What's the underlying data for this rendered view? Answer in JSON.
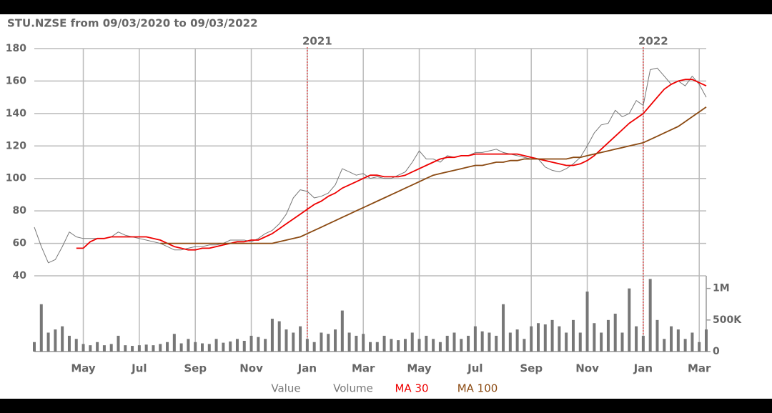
{
  "chart_data": {
    "type": "line",
    "title": "STU.NZSE from 09/03/2020 to 09/03/2022",
    "categories": [
      null,
      null,
      null,
      null,
      null,
      null,
      null,
      "May",
      null,
      null,
      null,
      null,
      null,
      null,
      null,
      "Jul",
      null,
      null,
      null,
      null,
      null,
      null,
      null,
      "Sep",
      null,
      null,
      null,
      null,
      null,
      null,
      null,
      "Nov",
      null,
      null,
      null,
      null,
      null,
      null,
      null,
      "Jan",
      null,
      null,
      null,
      null,
      null,
      null,
      null,
      "Mar",
      null,
      null,
      null,
      null,
      null,
      null,
      null,
      "May",
      null,
      null,
      null,
      null,
      null,
      null,
      null,
      "Jul",
      null,
      null,
      null,
      null,
      null,
      null,
      null,
      "Sep",
      null,
      null,
      null,
      null,
      null,
      null,
      null,
      "Nov",
      null,
      null,
      null,
      null,
      null,
      null,
      null,
      "Jan",
      null,
      null,
      null,
      null,
      null,
      null,
      null,
      "Mar",
      null
    ],
    "year_categories": [
      null,
      null,
      null,
      null,
      null,
      null,
      null,
      null,
      null,
      null,
      null,
      null,
      null,
      null,
      null,
      null,
      null,
      null,
      null,
      null,
      null,
      null,
      null,
      null,
      null,
      null,
      null,
      null,
      null,
      null,
      null,
      null,
      null,
      null,
      null,
      null,
      null,
      null,
      null,
      "2021",
      null,
      null,
      null,
      null,
      null,
      null,
      null,
      null,
      null,
      null,
      null,
      null,
      null,
      null,
      null,
      null,
      null,
      null,
      null,
      null,
      null,
      null,
      null,
      null,
      null,
      null,
      null,
      null,
      null,
      null,
      null,
      null,
      null,
      null,
      null,
      null,
      null,
      null,
      null,
      null,
      null,
      null,
      null,
      null,
      null,
      null,
      null,
      "2022",
      null,
      null,
      null,
      null,
      null,
      null,
      null,
      null,
      null
    ],
    "series": [
      {
        "name": "Value",
        "color": "#777777",
        "values": [
          70,
          58,
          48,
          50,
          58,
          67,
          64,
          63,
          63,
          63,
          63,
          64,
          67,
          65,
          64,
          63,
          62,
          61,
          60,
          58,
          56,
          56,
          57,
          58,
          58,
          59,
          59,
          60,
          62,
          62,
          62,
          61,
          63,
          66,
          68,
          72,
          78,
          88,
          93,
          92,
          88,
          89,
          91,
          96,
          106,
          104,
          102,
          103,
          100,
          101,
          100,
          100,
          102,
          104,
          110,
          117,
          112,
          112,
          110,
          114,
          113,
          114,
          114,
          116,
          116,
          117,
          118,
          116,
          115,
          114,
          113,
          112,
          112,
          107,
          105,
          104,
          106,
          109,
          113,
          120,
          128,
          133,
          134,
          142,
          138,
          140,
          148,
          145,
          167,
          168,
          163,
          158,
          160,
          157,
          163,
          158,
          150
        ]
      },
      {
        "name": "Volume",
        "color": "#777777",
        "type": "bar",
        "axis": "y2",
        "values": [
          150000,
          750000,
          300000,
          350000,
          400000,
          250000,
          200000,
          120000,
          100000,
          150000,
          100000,
          120000,
          250000,
          100000,
          90000,
          100000,
          110000,
          100000,
          120000,
          150000,
          280000,
          130000,
          200000,
          150000,
          130000,
          120000,
          200000,
          140000,
          160000,
          200000,
          170000,
          250000,
          230000,
          200000,
          520000,
          480000,
          350000,
          300000,
          400000,
          200000,
          150000,
          300000,
          280000,
          350000,
          650000,
          300000,
          250000,
          280000,
          150000,
          150000,
          250000,
          200000,
          180000,
          200000,
          300000,
          200000,
          250000,
          200000,
          150000,
          250000,
          300000,
          200000,
          250000,
          400000,
          320000,
          300000,
          250000,
          750000,
          300000,
          350000,
          200000,
          400000,
          450000,
          430000,
          500000,
          400000,
          300000,
          500000,
          300000,
          950000,
          450000,
          300000,
          500000,
          600000,
          300000,
          1000000,
          400000,
          250000,
          1150000,
          500000,
          200000,
          400000,
          350000,
          200000,
          300000,
          150000,
          350000
        ]
      },
      {
        "name": "MA 30",
        "color": "#ee0000",
        "values": [
          null,
          null,
          null,
          null,
          null,
          null,
          57,
          57,
          61,
          63,
          63,
          64,
          64,
          64,
          64,
          64,
          64,
          63,
          62,
          60,
          58,
          57,
          56,
          56,
          57,
          57,
          58,
          59,
          60,
          61,
          61,
          62,
          62,
          64,
          66,
          69,
          72,
          75,
          78,
          81,
          84,
          86,
          89,
          91,
          94,
          96,
          98,
          100,
          102,
          102,
          101,
          101,
          101,
          102,
          104,
          106,
          108,
          110,
          112,
          113,
          113,
          114,
          114,
          115,
          115,
          115,
          115,
          115,
          115,
          115,
          114,
          113,
          112,
          111,
          110,
          109,
          108,
          108,
          109,
          111,
          114,
          118,
          122,
          126,
          130,
          134,
          137,
          140,
          145,
          150,
          155,
          158,
          160,
          161,
          161,
          159,
          157
        ]
      },
      {
        "name": "MA 100",
        "color": "#8b4a12",
        "values": [
          null,
          null,
          null,
          null,
          null,
          null,
          null,
          null,
          null,
          null,
          null,
          null,
          null,
          null,
          null,
          null,
          null,
          null,
          60,
          60,
          60,
          60,
          60,
          60,
          60,
          60,
          60,
          60,
          60,
          60,
          60,
          60,
          60,
          60,
          60,
          61,
          62,
          63,
          64,
          66,
          68,
          70,
          72,
          74,
          76,
          78,
          80,
          82,
          84,
          86,
          88,
          90,
          92,
          94,
          96,
          98,
          100,
          102,
          103,
          104,
          105,
          106,
          107,
          108,
          108,
          109,
          110,
          110,
          111,
          111,
          112,
          112,
          112,
          112,
          112,
          112,
          112,
          113,
          113,
          114,
          115,
          116,
          117,
          118,
          119,
          120,
          121,
          122,
          124,
          126,
          128,
          130,
          132,
          135,
          138,
          141,
          144
        ]
      }
    ],
    "ylim": [
      40,
      180
    ],
    "yticks": [
      40,
      60,
      80,
      100,
      120,
      140,
      160,
      180
    ],
    "y2lim": [
      0,
      1200000
    ],
    "y2ticks": [
      0,
      {
        "value": 500000,
        "label": "500K"
      },
      {
        "value": 1000000,
        "label": "1M"
      }
    ],
    "grid": true,
    "legend": "bottom"
  }
}
